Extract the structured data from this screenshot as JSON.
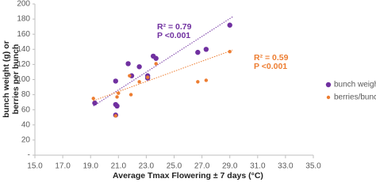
{
  "chart_data": {
    "type": "scatter",
    "xlabel": "Average Tmax Flowering ± 7 days (°C)",
    "ylabel": [
      "bunch weight (g) or",
      "berries per bunch"
    ],
    "xlim": [
      15,
      35
    ],
    "xticks": [
      {
        "value": 15,
        "label": "15.0"
      },
      {
        "value": 17,
        "label": "17.0"
      },
      {
        "value": 19,
        "label": "19.0"
      },
      {
        "value": 21,
        "label": "21.0"
      },
      {
        "value": 23,
        "label": "23.0"
      },
      {
        "value": 25,
        "label": "25.0"
      },
      {
        "value": 27,
        "label": "27.0"
      },
      {
        "value": 29,
        "label": "29.0"
      },
      {
        "value": 31,
        "label": "31.0"
      },
      {
        "value": 33,
        "label": "33.0"
      },
      {
        "value": 35,
        "label": "35.0"
      }
    ],
    "ylim": [
      0,
      200
    ],
    "yticks": [
      {
        "value": 0,
        "label": "-"
      },
      20,
      40,
      60,
      80,
      100,
      120,
      140,
      160,
      180,
      200
    ],
    "legend": "right",
    "series": [
      {
        "name": "bunch weight",
        "color": "#7030a0",
        "x": [
          19.3,
          20.8,
          20.8,
          20.9,
          20.8,
          21.7,
          21.95,
          22.5,
          23.1,
          23.1,
          23.5,
          23.7,
          26.7,
          27.3,
          29.0
        ],
        "values": [
          69,
          98,
          67,
          65,
          53,
          121,
          105,
          117,
          105,
          102,
          131,
          128,
          136,
          140,
          172
        ],
        "trend_x": [
          19.2,
          29.2
        ],
        "trend": [
          65,
          183
        ],
        "annotation": [
          "R² = 0.79",
          "P <0.001"
        ]
      },
      {
        "name": "berries/bunch",
        "color": "#ed7d31",
        "x": [
          19.2,
          20.8,
          20.9,
          21.0,
          21.8,
          21.9,
          22.5,
          23.1,
          23.7,
          26.7,
          27.3,
          29.0
        ],
        "values": [
          75,
          52,
          77,
          82,
          105,
          80,
          97,
          103,
          121,
          97,
          99,
          137
        ],
        "trend_x": [
          19.2,
          29.2
        ],
        "trend": [
          72,
          139
        ],
        "annotation": [
          "R² = 0.59",
          "P <0.001"
        ]
      }
    ]
  }
}
